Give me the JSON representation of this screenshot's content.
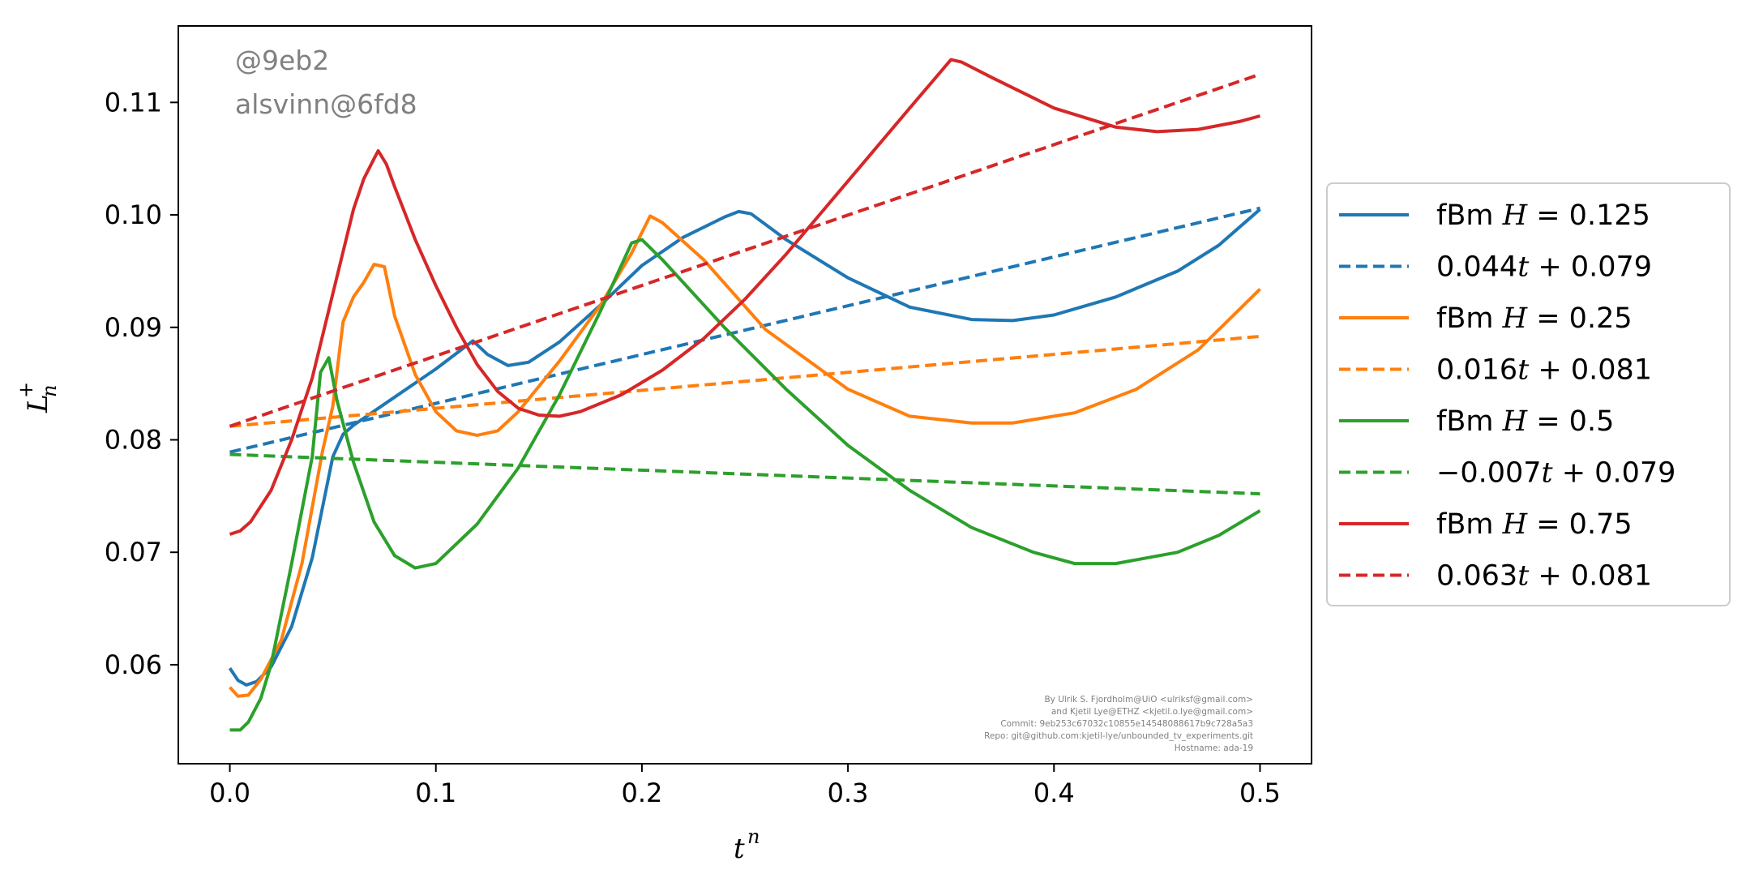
{
  "watermark": {
    "line1": "@9eb2",
    "line2": "alsvinn@6fd8"
  },
  "credits": [
    "By Ulrik S. Fjordholm@UiO <ulriksf@gmail.com>",
    "and Kjetil Lye@ETHZ <kjetil.o.lye@gmail.com>",
    "Commit: 9eb253c67032c10855e14548088617b9c728a5a3",
    "Repo: git@github.com:kjetil-lye/unbounded_tv_experiments.git",
    "Hostname: ada-19"
  ],
  "chart_data": {
    "type": "line",
    "xlabel": "t^n",
    "ylabel": "L_n^+",
    "xlim": [
      -0.025,
      0.525
    ],
    "ylim": [
      0.0512,
      0.1168
    ],
    "xticks": [
      0.0,
      0.1,
      0.2,
      0.3,
      0.4,
      0.5
    ],
    "xtick_labels": [
      "0.0",
      "0.1",
      "0.2",
      "0.3",
      "0.4",
      "0.5"
    ],
    "yticks": [
      0.06,
      0.07,
      0.08,
      0.09,
      0.1,
      0.11
    ],
    "ytick_labels": [
      "0.06",
      "0.07",
      "0.08",
      "0.09",
      "0.10",
      "0.11"
    ],
    "grid": false,
    "legend_position": "outside-right",
    "series": [
      {
        "name": "fBm H = 0.125",
        "legend_parts": [
          "fBm ",
          "H",
          " = 0.125"
        ],
        "color": "#1f77b4",
        "style": "solid",
        "points": [
          [
            0.0,
            0.0597
          ],
          [
            0.004,
            0.0586
          ],
          [
            0.008,
            0.0582
          ],
          [
            0.013,
            0.0585
          ],
          [
            0.02,
            0.0598
          ],
          [
            0.03,
            0.0634
          ],
          [
            0.04,
            0.0695
          ],
          [
            0.05,
            0.0785
          ],
          [
            0.055,
            0.0805
          ],
          [
            0.06,
            0.0813
          ],
          [
            0.08,
            0.0838
          ],
          [
            0.1,
            0.0863
          ],
          [
            0.118,
            0.0888
          ],
          [
            0.125,
            0.0876
          ],
          [
            0.135,
            0.0866
          ],
          [
            0.145,
            0.0869
          ],
          [
            0.16,
            0.0887
          ],
          [
            0.18,
            0.092
          ],
          [
            0.2,
            0.0955
          ],
          [
            0.22,
            0.098
          ],
          [
            0.24,
            0.0998
          ],
          [
            0.247,
            0.1003
          ],
          [
            0.253,
            0.1001
          ],
          [
            0.27,
            0.0978
          ],
          [
            0.3,
            0.0944
          ],
          [
            0.33,
            0.0918
          ],
          [
            0.36,
            0.0907
          ],
          [
            0.38,
            0.0906
          ],
          [
            0.4,
            0.0911
          ],
          [
            0.43,
            0.0927
          ],
          [
            0.46,
            0.095
          ],
          [
            0.48,
            0.0973
          ],
          [
            0.5,
            0.1005
          ]
        ]
      },
      {
        "name": "0.044t + 0.079",
        "legend_parts": [
          "0.044",
          "t",
          " + 0.079"
        ],
        "color": "#1f77b4",
        "style": "dashed",
        "points": [
          [
            0.0,
            0.0789
          ],
          [
            0.5,
            0.1006
          ]
        ]
      },
      {
        "name": "fBm H = 0.25",
        "legend_parts": [
          "fBm ",
          "H",
          " = 0.25"
        ],
        "color": "#ff7f0e",
        "style": "solid",
        "points": [
          [
            0.0,
            0.058
          ],
          [
            0.004,
            0.0572
          ],
          [
            0.009,
            0.0573
          ],
          [
            0.015,
            0.0587
          ],
          [
            0.025,
            0.0622
          ],
          [
            0.035,
            0.069
          ],
          [
            0.045,
            0.079
          ],
          [
            0.05,
            0.083
          ],
          [
            0.055,
            0.0905
          ],
          [
            0.06,
            0.0927
          ],
          [
            0.065,
            0.094
          ],
          [
            0.07,
            0.0956
          ],
          [
            0.075,
            0.0954
          ],
          [
            0.08,
            0.091
          ],
          [
            0.09,
            0.0858
          ],
          [
            0.1,
            0.0825
          ],
          [
            0.11,
            0.0808
          ],
          [
            0.12,
            0.0804
          ],
          [
            0.13,
            0.0808
          ],
          [
            0.14,
            0.0825
          ],
          [
            0.16,
            0.087
          ],
          [
            0.18,
            0.092
          ],
          [
            0.195,
            0.0966
          ],
          [
            0.204,
            0.0999
          ],
          [
            0.21,
            0.0993
          ],
          [
            0.23,
            0.096
          ],
          [
            0.26,
            0.0898
          ],
          [
            0.3,
            0.0845
          ],
          [
            0.33,
            0.0821
          ],
          [
            0.36,
            0.0815
          ],
          [
            0.38,
            0.0815
          ],
          [
            0.41,
            0.0824
          ],
          [
            0.44,
            0.0845
          ],
          [
            0.47,
            0.088
          ],
          [
            0.5,
            0.0934
          ]
        ]
      },
      {
        "name": "0.016t + 0.081",
        "legend_parts": [
          "0.016",
          "t",
          " + 0.081"
        ],
        "color": "#ff7f0e",
        "style": "dashed",
        "points": [
          [
            0.0,
            0.0812
          ],
          [
            0.5,
            0.0892
          ]
        ]
      },
      {
        "name": "fBm H = 0.5",
        "legend_parts": [
          "fBm ",
          "H",
          " = 0.5"
        ],
        "color": "#2ca02c",
        "style": "solid",
        "points": [
          [
            0.0,
            0.0542
          ],
          [
            0.005,
            0.0542
          ],
          [
            0.009,
            0.0549
          ],
          [
            0.015,
            0.057
          ],
          [
            0.02,
            0.06
          ],
          [
            0.03,
            0.069
          ],
          [
            0.04,
            0.0785
          ],
          [
            0.044,
            0.086
          ],
          [
            0.048,
            0.0873
          ],
          [
            0.052,
            0.0835
          ],
          [
            0.06,
            0.078
          ],
          [
            0.07,
            0.0727
          ],
          [
            0.08,
            0.0697
          ],
          [
            0.09,
            0.0686
          ],
          [
            0.1,
            0.069
          ],
          [
            0.12,
            0.0725
          ],
          [
            0.14,
            0.0775
          ],
          [
            0.16,
            0.084
          ],
          [
            0.18,
            0.0915
          ],
          [
            0.195,
            0.0975
          ],
          [
            0.2,
            0.0978
          ],
          [
            0.21,
            0.096
          ],
          [
            0.24,
            0.09
          ],
          [
            0.27,
            0.0845
          ],
          [
            0.3,
            0.0795
          ],
          [
            0.33,
            0.0755
          ],
          [
            0.36,
            0.0722
          ],
          [
            0.39,
            0.07
          ],
          [
            0.41,
            0.069
          ],
          [
            0.43,
            0.069
          ],
          [
            0.46,
            0.07
          ],
          [
            0.48,
            0.0715
          ],
          [
            0.5,
            0.0737
          ]
        ]
      },
      {
        "name": "−0.007t + 0.079",
        "legend_parts": [
          "−0.007",
          "t",
          " + 0.079"
        ],
        "color": "#2ca02c",
        "style": "dashed",
        "points": [
          [
            0.0,
            0.0787
          ],
          [
            0.5,
            0.0752
          ]
        ]
      },
      {
        "name": "fBm H = 0.75",
        "legend_parts": [
          "fBm ",
          "H",
          " = 0.75"
        ],
        "color": "#d62728",
        "style": "solid",
        "points": [
          [
            0.0,
            0.0716
          ],
          [
            0.005,
            0.0719
          ],
          [
            0.01,
            0.0727
          ],
          [
            0.02,
            0.0755
          ],
          [
            0.03,
            0.08
          ],
          [
            0.04,
            0.0855
          ],
          [
            0.05,
            0.093
          ],
          [
            0.06,
            0.1005
          ],
          [
            0.065,
            0.1032
          ],
          [
            0.07,
            0.105
          ],
          [
            0.072,
            0.1057
          ],
          [
            0.076,
            0.1045
          ],
          [
            0.08,
            0.1025
          ],
          [
            0.09,
            0.0978
          ],
          [
            0.1,
            0.0937
          ],
          [
            0.11,
            0.09
          ],
          [
            0.12,
            0.0867
          ],
          [
            0.13,
            0.0843
          ],
          [
            0.14,
            0.0828
          ],
          [
            0.15,
            0.0822
          ],
          [
            0.16,
            0.0821
          ],
          [
            0.17,
            0.0825
          ],
          [
            0.19,
            0.084
          ],
          [
            0.21,
            0.0862
          ],
          [
            0.23,
            0.089
          ],
          [
            0.25,
            0.0925
          ],
          [
            0.27,
            0.0965
          ],
          [
            0.3,
            0.103
          ],
          [
            0.33,
            0.1095
          ],
          [
            0.35,
            0.1138
          ],
          [
            0.355,
            0.1136
          ],
          [
            0.37,
            0.1122
          ],
          [
            0.4,
            0.1095
          ],
          [
            0.43,
            0.1078
          ],
          [
            0.45,
            0.1074
          ],
          [
            0.47,
            0.1076
          ],
          [
            0.49,
            0.1083
          ],
          [
            0.5,
            0.1088
          ]
        ]
      },
      {
        "name": "0.063t + 0.081",
        "legend_parts": [
          "0.063",
          "t",
          " + 0.081"
        ],
        "color": "#d62728",
        "style": "dashed",
        "points": [
          [
            0.0,
            0.0812
          ],
          [
            0.5,
            0.1125
          ]
        ]
      }
    ]
  }
}
